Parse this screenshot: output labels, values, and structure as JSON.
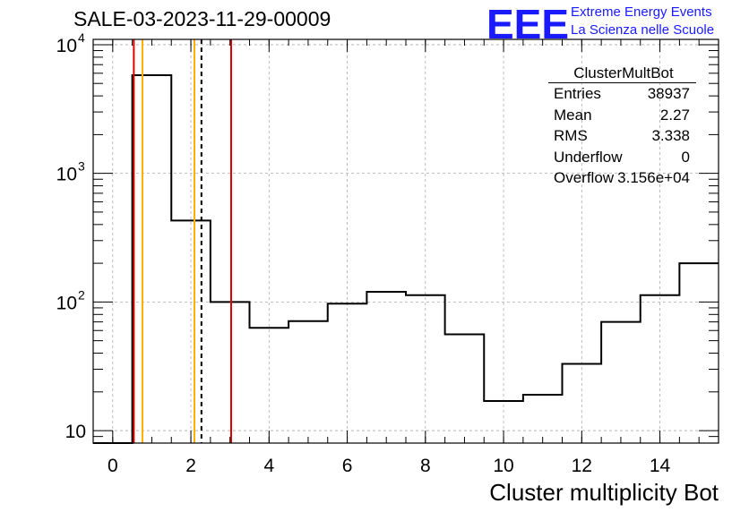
{
  "title": "SALE-03-2023-11-29-00009",
  "logo": {
    "mark": "EEE",
    "line1": "Extreme Energy Events",
    "line2": "La Scienza nelle Scuole",
    "color": "#1a1aff"
  },
  "stats_box": {
    "name": "ClusterMultBot",
    "rows": [
      {
        "label": "Entries",
        "value": "38937"
      },
      {
        "label": "Mean",
        "value": "2.27"
      },
      {
        "label": "RMS",
        "value": "3.338"
      },
      {
        "label": "Underflow",
        "value": "0"
      },
      {
        "label": "Overflow",
        "value": "3.156e+04"
      }
    ]
  },
  "chart_data": {
    "type": "histogram",
    "xlabel": "Cluster multiplicity Bot",
    "ylabel": "",
    "xlim": [
      -0.5,
      15.5
    ],
    "ylim": [
      8,
      11000
    ],
    "yscale": "log",
    "grid": true,
    "x_ticks": [
      "0",
      "2",
      "4",
      "6",
      "8",
      "10",
      "12",
      "14"
    ],
    "y_ticks": [
      {
        "base": "10",
        "exp": "4",
        "value": 10000
      },
      {
        "base": "10",
        "exp": "3",
        "value": 1000
      },
      {
        "base": "10",
        "exp": "2",
        "value": 100
      },
      {
        "base": "10",
        "exp": "",
        "value": 10
      }
    ],
    "bins": [
      {
        "x": 0,
        "value": 0
      },
      {
        "x": 1,
        "value": 5800
      },
      {
        "x": 2,
        "value": 430
      },
      {
        "x": 3,
        "value": 100
      },
      {
        "x": 4,
        "value": 63
      },
      {
        "x": 5,
        "value": 71
      },
      {
        "x": 6,
        "value": 97
      },
      {
        "x": 7,
        "value": 120
      },
      {
        "x": 8,
        "value": 113
      },
      {
        "x": 9,
        "value": 56
      },
      {
        "x": 10,
        "value": 17
      },
      {
        "x": 11,
        "value": 19
      },
      {
        "x": 12,
        "value": 33
      },
      {
        "x": 13,
        "value": 70
      },
      {
        "x": 14,
        "value": 113
      },
      {
        "x": 15,
        "value": 200
      }
    ],
    "vertical_lines": [
      {
        "x": 0.54,
        "color": "#e00000",
        "style": "solid"
      },
      {
        "x": 0.76,
        "color": "#ffb000",
        "style": "solid"
      },
      {
        "x": 2.09,
        "color": "#ffb000",
        "style": "solid"
      },
      {
        "x": 2.27,
        "color": "#000000",
        "style": "dashed"
      },
      {
        "x": 3.03,
        "color": "#e00000",
        "style": "solid"
      }
    ]
  }
}
